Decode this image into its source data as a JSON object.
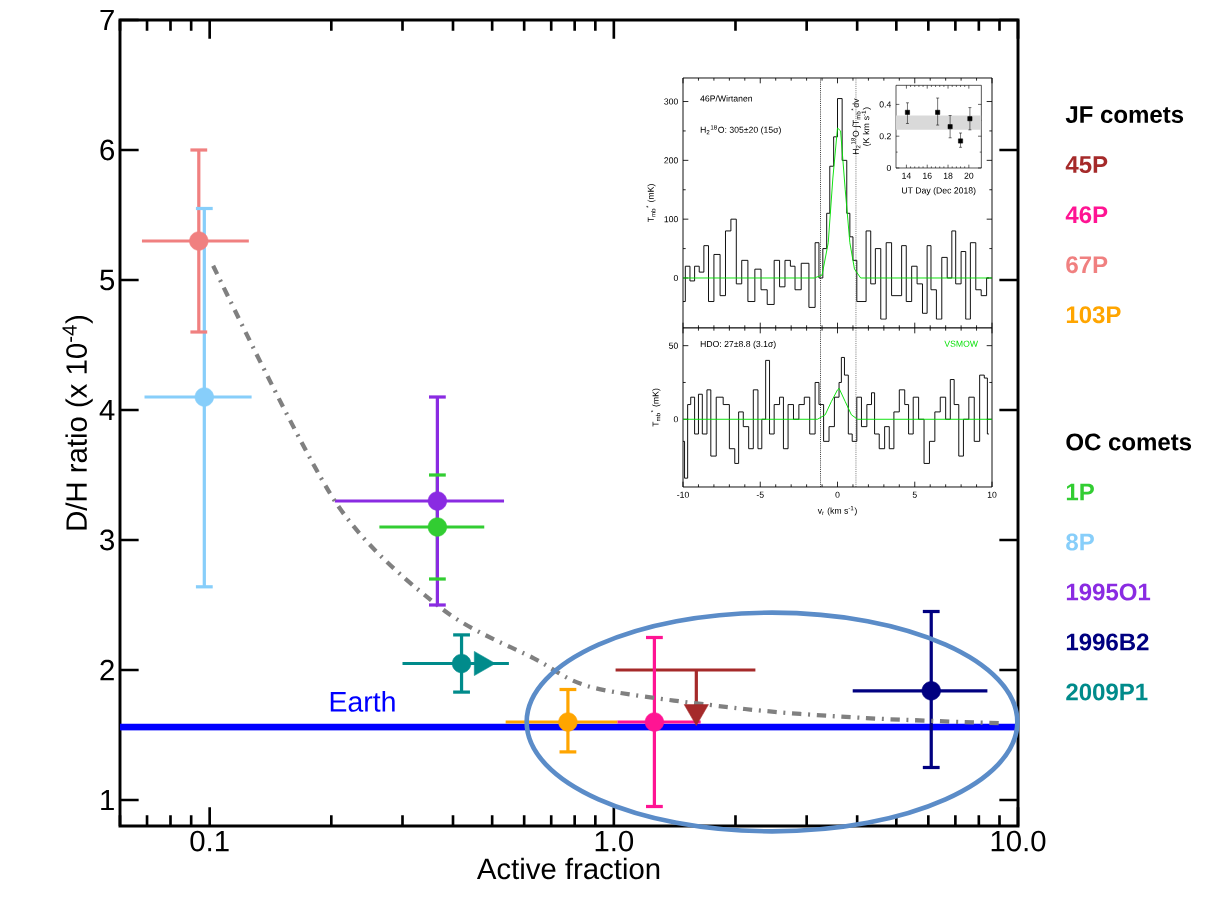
{
  "chart_data": [
    {
      "type": "scatter",
      "xlabel": "Active fraction",
      "ylabel": "D/H ratio (x 10$^{-4}$)",
      "log": "x",
      "xlim": [
        0.06,
        10
      ],
      "ylim": [
        0.8,
        7
      ],
      "xticks": [
        0.1,
        {
          "value": 1,
          "label": "1.0"
        },
        {
          "value": 10,
          "label": "10.0"
        }
      ],
      "yticks": [
        1,
        2,
        3,
        4,
        5,
        6,
        7
      ],
      "marker": "circle",
      "legend": "right",
      "annotations": [
        "JF comets",
        "OC comets"
      ],
      "ref_lines": [
        {
          "axis": "y",
          "value": 1.56,
          "label": "Earth",
          "color": "#0000ff",
          "line_style": "solid"
        }
      ],
      "series": [
        {
          "name": "45P",
          "color": "#a52a2a",
          "x": [
            1.6
          ],
          "values": [
            1.68
          ],
          "marker": "triangle"
        },
        {
          "type": "line",
          "color": "#a52a2a",
          "marker": "none",
          "line_style": "solid",
          "x": [
            1.01,
            1.6,
            1.6,
            1.6,
            2.24
          ],
          "values": [
            2.0,
            2.0,
            1.7,
            2.0,
            2.0
          ]
        },
        {
          "name": "46P",
          "color": "#ff1493",
          "x": [
            1.26
          ],
          "values": [
            1.6
          ],
          "errors": [
            [
              0.95,
              2.25
            ]
          ],
          "xerrors": [
            [
              1.02,
              1.64
            ]
          ]
        },
        {
          "name": "67P",
          "color": "#f08080",
          "x": [
            0.094
          ],
          "values": [
            5.3
          ],
          "errors": [
            [
              4.6,
              6.0
            ]
          ],
          "xerrors": [
            [
              0.068,
              0.125
            ]
          ]
        },
        {
          "name": "103P",
          "color": "#ffa500",
          "x": [
            0.77
          ],
          "values": [
            1.6
          ],
          "errors": [
            [
              1.37,
              1.85
            ]
          ],
          "xerrors": [
            [
              0.54,
              1.02
            ]
          ]
        },
        {
          "name": "1P",
          "color": "#32cd32",
          "x": [
            0.366
          ],
          "values": [
            3.1
          ],
          "errors": [
            [
              2.7,
              3.5
            ]
          ],
          "xerrors": [
            [
              0.263,
              0.478
            ]
          ]
        },
        {
          "name": "8P",
          "color": "#87cefa",
          "x": [
            0.097
          ],
          "values": [
            4.1
          ],
          "errors": [
            [
              2.64,
              5.55
            ]
          ],
          "xerrors": [
            [
              0.069,
              0.127
            ]
          ]
        },
        {
          "name": "1995O1",
          "color": "#8a2be2",
          "x": [
            0.366
          ],
          "values": [
            3.3
          ],
          "errors": [
            [
              2.5,
              4.1
            ]
          ],
          "xerrors": [
            [
              0.204,
              0.535
            ]
          ]
        },
        {
          "name": "1996B2",
          "color": "#000080",
          "x": [
            6.1
          ],
          "values": [
            1.84
          ],
          "errors": [
            [
              1.25,
              2.45
            ]
          ],
          "xerrors": [
            [
              3.9,
              8.4
            ]
          ]
        },
        {
          "name": "2009P1",
          "color": "#008b8b",
          "x": [
            0.42
          ],
          "values": [
            2.05
          ],
          "errors": [
            [
              1.83,
              2.27
            ]
          ],
          "xerrors": [
            [
              0.3,
              0.55
            ]
          ]
        },
        {
          "color": "#008b8b",
          "x": [
            0.47
          ],
          "values": [
            2.05
          ],
          "marker": "triangle"
        },
        {
          "type": "line",
          "color": "#808080",
          "line_style": "dashed",
          "marker": "none",
          "x": [
            0.102,
            0.205,
            0.376,
            0.634,
            0.9,
            2.11,
            4.21,
            9.1
          ],
          "values": [
            5.11,
            3.29,
            2.47,
            2.09,
            1.86,
            1.7,
            1.63,
            1.59
          ]
        }
      ]
    },
    {
      "type": "step",
      "ylabel": "T$_{mb}$$^{*}$ (mK)",
      "xlim": [
        -10,
        10
      ],
      "ylim": [
        -85,
        340
      ],
      "xticks": [
        -10,
        -5,
        0,
        5,
        10
      ],
      "yticks": [
        0,
        100,
        200,
        300
      ],
      "tick_labels": "y",
      "annotations": [
        "46P/Wirtanen",
        "H$_{2}$$^{18}$O: 305±20 (15σ)"
      ],
      "ref_lines": [
        {
          "axis": "x",
          "value": -1.1,
          "line_style": "dotted"
        },
        {
          "axis": "x",
          "value": 1.2,
          "line_style": "dotted"
        }
      ],
      "series": [
        {
          "color": "#000000",
          "x": [
            -10.0,
            -9.7,
            -9.4,
            -9.1,
            -8.8,
            -8.5,
            -8.2,
            -7.8,
            -7.4,
            -7.1,
            -6.7,
            -6.4,
            -6.0,
            -5.6,
            -5.1,
            -4.8,
            -4.3,
            -3.9,
            -3.6,
            -3.2,
            -2.9,
            -2.6,
            -2.1,
            -1.6,
            -1.3,
            -1.1,
            -0.8,
            -0.6,
            -0.4,
            -0.1,
            0.1,
            0.5,
            0.7,
            0.9,
            1.1,
            1.4,
            1.7,
            2.0,
            2.3,
            2.6,
            3.0,
            3.3,
            3.7,
            4.0,
            4.3,
            4.6,
            5.0,
            5.3,
            5.7,
            5.9,
            6.2,
            6.6,
            6.9,
            7.3,
            7.5,
            7.8,
            8.2,
            8.4,
            8.8,
            9.1,
            9.5,
            9.8
          ],
          "values": [
            -40,
            20,
            -5,
            20,
            10,
            55,
            -40,
            40,
            -30,
            80,
            100,
            -10,
            30,
            -40,
            15,
            -20,
            -45,
            30,
            -15,
            30,
            20,
            -20,
            25,
            -50,
            60,
            0,
            50,
            110,
            190,
            240,
            305,
            200,
            110,
            70,
            30,
            -40,
            -40,
            80,
            -10,
            50,
            -70,
            60,
            -30,
            -30,
            55,
            -40,
            20,
            -10,
            -60,
            55,
            -20,
            -70,
            35,
            0,
            80,
            -10,
            45,
            -70,
            60,
            -20,
            -30,
            0
          ]
        },
        {
          "type": "line",
          "color": "#00e000",
          "x": [
            -10,
            -1.5,
            -1.0,
            -0.6,
            -0.3,
            0.0,
            0.2,
            0.5,
            0.8,
            1.1,
            1.5,
            10
          ],
          "values": [
            0,
            0,
            5,
            60,
            170,
            255,
            250,
            150,
            60,
            15,
            0,
            0
          ]
        }
      ]
    },
    {
      "type": "step",
      "xlabel": "v$_{r}$ (km s$^{-1}$)",
      "ylabel": "T$_{mb}$$^{*}$ (mK)",
      "xlim": [
        -10,
        10
      ],
      "ylim": [
        -46,
        62
      ],
      "xticks": [
        -10,
        -5,
        0,
        5,
        10
      ],
      "yticks": [
        0,
        50
      ],
      "annotations": [
        "HDO: 27±8.8 (3.1σ)"
      ],
      "ref_lines": [
        {
          "axis": "x",
          "value": -1.1,
          "line_style": "dotted"
        },
        {
          "axis": "x",
          "value": 1.2,
          "line_style": "dotted"
        }
      ],
      "series": [
        {
          "color": "#000000",
          "x": [
            -10.0,
            -9.8,
            -9.6,
            -9.4,
            -9.1,
            -8.9,
            -8.6,
            -8.3,
            -8.1,
            -7.6,
            -7.2,
            -6.8,
            -6.5,
            -6.3,
            -5.9,
            -5.6,
            -5.3,
            -5.0,
            -4.8,
            -4.5,
            -4.3,
            -3.9,
            -3.6,
            -3.4,
            -3.0,
            -2.7,
            -2.3,
            -2.0,
            -1.6,
            -1.3,
            -1.1,
            -0.7,
            -0.4,
            0.0,
            0.2,
            0.3,
            0.6,
            0.8,
            1.1,
            1.4,
            1.7,
            2.1,
            2.3,
            2.5,
            2.9,
            3.2,
            3.5,
            3.8,
            4.2,
            4.5,
            4.7,
            5.1,
            5.4,
            5.8,
            6.1,
            6.5,
            6.8,
            7.2,
            7.4,
            7.7,
            8.0,
            8.3,
            8.7,
            9.0,
            9.4,
            9.6,
            9.8
          ],
          "values": [
            -15,
            -40,
            10,
            15,
            -10,
            17,
            -10,
            20,
            -25,
            15,
            10,
            -20,
            -30,
            5,
            -5,
            -20,
            20,
            -20,
            0,
            40,
            -10,
            10,
            15,
            -20,
            10,
            0,
            10,
            15,
            -10,
            25,
            10,
            -15,
            -5,
            15,
            25,
            42,
            30,
            -10,
            -15,
            15,
            -5,
            10,
            18,
            -10,
            -20,
            -5,
            -20,
            5,
            20,
            10,
            -10,
            15,
            0,
            -30,
            -15,
            5,
            15,
            0,
            27,
            10,
            -25,
            0,
            15,
            -15,
            30,
            28,
            -10
          ]
        },
        {
          "type": "line",
          "name": "VSMOW",
          "color": "#00e000",
          "x": [
            -10,
            -1.3,
            -0.8,
            -0.4,
            0.0,
            0.1,
            0.5,
            0.9,
            1.3,
            10
          ],
          "values": [
            0,
            0,
            3,
            12,
            20,
            21,
            12,
            3,
            0,
            0
          ]
        }
      ]
    },
    {
      "type": "scatter",
      "xlabel": "UT Day (Dec 2018)",
      "ylabel": "H$_{2}$$^{18}$O ∫T$_{mb}$$^{*}$dv (K km s$^{-1}$)",
      "xlim": [
        13,
        21.2
      ],
      "ylim": [
        0,
        0.52
      ],
      "xticks": [
        14,
        16,
        18,
        20
      ],
      "yticks": [
        0,
        0.2,
        0.4
      ],
      "marker": "square",
      "bands": [
        {
          "axis": "y",
          "from": 0.24,
          "to": 0.33,
          "color": "#d9d9d9"
        }
      ],
      "series": [
        {
          "color": "#000000",
          "x": [
            14.1,
            17.0,
            18.2,
            19.2,
            20.1
          ],
          "values": [
            0.35,
            0.35,
            0.26,
            0.17,
            0.31
          ],
          "errors": [
            [
              0.28,
              0.41
            ],
            [
              0.27,
              0.44
            ],
            [
              0.19,
              0.33
            ],
            [
              0.13,
              0.22
            ],
            [
              0.24,
              0.38
            ]
          ]
        }
      ]
    }
  ]
}
